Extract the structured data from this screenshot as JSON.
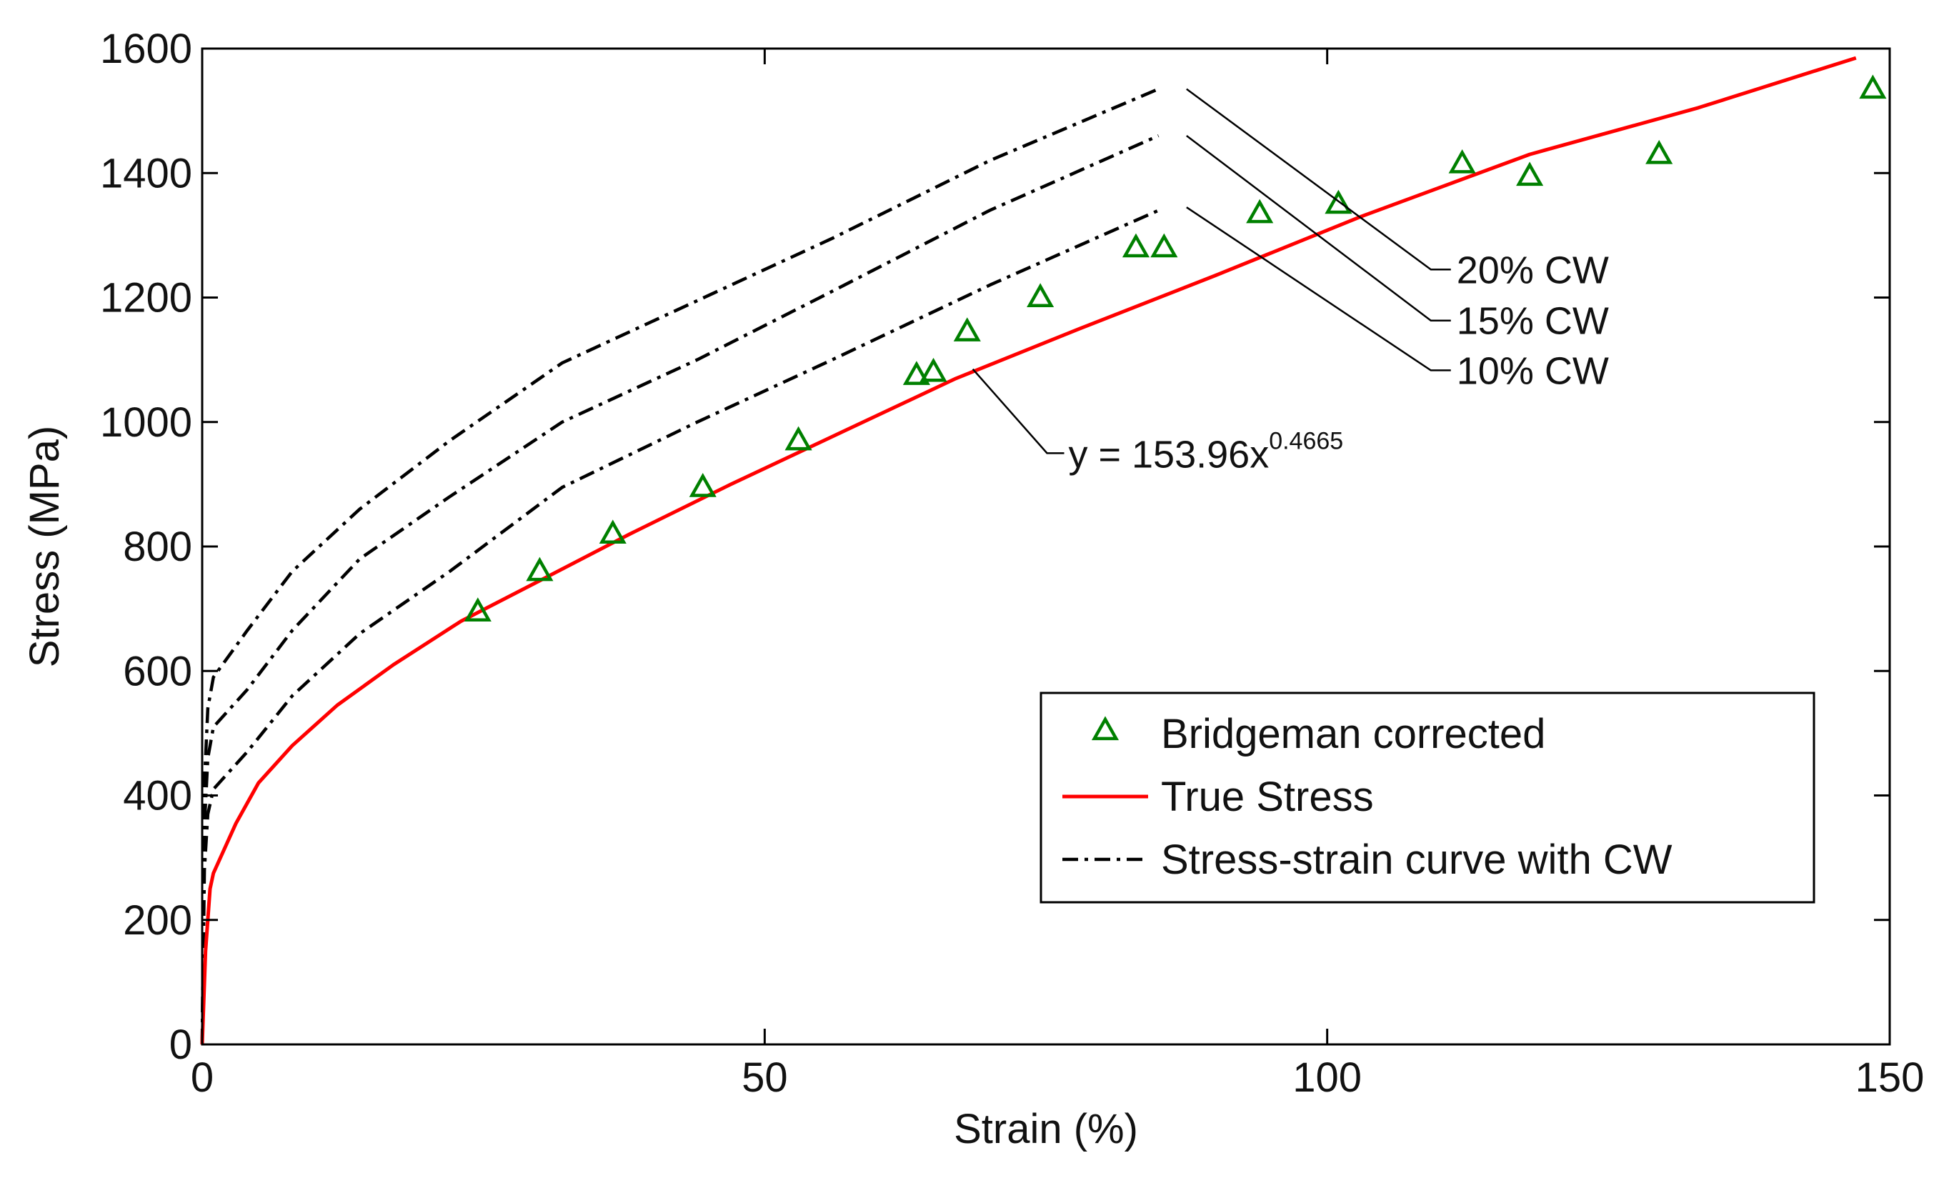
{
  "chart_data": {
    "type": "line",
    "title": "",
    "xlabel": "Strain (%)",
    "ylabel": "Stress (MPa)",
    "xlim": [
      0,
      150
    ],
    "ylim": [
      0,
      1600
    ],
    "xticks": [
      0,
      50,
      100,
      150
    ],
    "yticks": [
      0,
      200,
      400,
      600,
      800,
      1000,
      1200,
      1400,
      1600
    ],
    "xtick_labels": [
      "0",
      "50",
      "100",
      "150"
    ],
    "ytick_labels": [
      "0",
      "200",
      "400",
      "600",
      "800",
      "1000",
      "1200",
      "1400",
      "1600"
    ],
    "grid": false,
    "legend_position": "bottom-right",
    "series": [
      {
        "name": "Bridgeman corrected",
        "kind": "scatter",
        "marker": "triangle",
        "color": "#008000",
        "x": [
          24.5,
          30,
          36.5,
          44.5,
          53,
          63.5,
          65,
          68,
          74.5,
          83,
          85.5,
          94,
          101,
          112,
          118,
          129.5,
          148.5
        ],
        "y": [
          690,
          755,
          815,
          890,
          965,
          1070,
          1075,
          1140,
          1195,
          1275,
          1275,
          1330,
          1345,
          1410,
          1390,
          1425,
          1530
        ]
      },
      {
        "name": "True Stress",
        "kind": "line",
        "color": "#ff0000",
        "x": [
          0,
          0.3,
          0.7,
          1,
          3,
          5,
          8,
          12,
          17,
          23,
          30,
          38,
          47,
          57,
          67,
          78,
          90,
          103,
          118,
          133,
          147
        ],
        "y": [
          0,
          150,
          250,
          275,
          355,
          420,
          480,
          545,
          610,
          680,
          745,
          820,
          900,
          985,
          1070,
          1150,
          1235,
          1330,
          1430,
          1505,
          1585
        ]
      },
      {
        "name": "Stress-strain curve with CW",
        "kind": "line",
        "dash": "dash-dot",
        "color": "#000000",
        "legend_only": true,
        "x": [],
        "y": []
      }
    ],
    "cw_curves": [
      {
        "label": "10% CW",
        "x": [
          0,
          0.2,
          0.5,
          1,
          4,
          8,
          14,
          22,
          32,
          44,
          56,
          70,
          85
        ],
        "y": [
          0,
          280,
          370,
          410,
          470,
          560,
          660,
          760,
          895,
          1000,
          1100,
          1220,
          1340
        ]
      },
      {
        "label": "15% CW",
        "x": [
          0,
          0.2,
          0.5,
          1,
          4,
          8,
          14,
          22,
          32,
          44,
          56,
          70,
          85
        ],
        "y": [
          0,
          350,
          460,
          510,
          570,
          665,
          780,
          880,
          1000,
          1100,
          1210,
          1340,
          1460
        ]
      },
      {
        "label": "20% CW",
        "x": [
          0,
          0.2,
          0.5,
          1,
          4,
          8,
          14,
          22,
          32,
          44,
          56,
          70,
          85
        ],
        "y": [
          0,
          420,
          540,
          590,
          665,
          760,
          860,
          970,
          1095,
          1195,
          1295,
          1420,
          1535
        ]
      }
    ],
    "annotations": [
      {
        "text": "20% CW",
        "line_from": [
          87.5,
          1535
        ],
        "label_at": [
          111.5,
          1245
        ]
      },
      {
        "text": "15% CW",
        "line_from": [
          87.5,
          1460
        ],
        "label_at": [
          111.5,
          1163
        ]
      },
      {
        "text": "10% CW",
        "line_from": [
          87.5,
          1345
        ],
        "label_at": [
          111.5,
          1083
        ]
      },
      {
        "text": "y = 153.96x",
        "superscript": "0.4665",
        "line_from": [
          68.5,
          1085
        ],
        "label_at": [
          77,
          950
        ]
      }
    ]
  }
}
